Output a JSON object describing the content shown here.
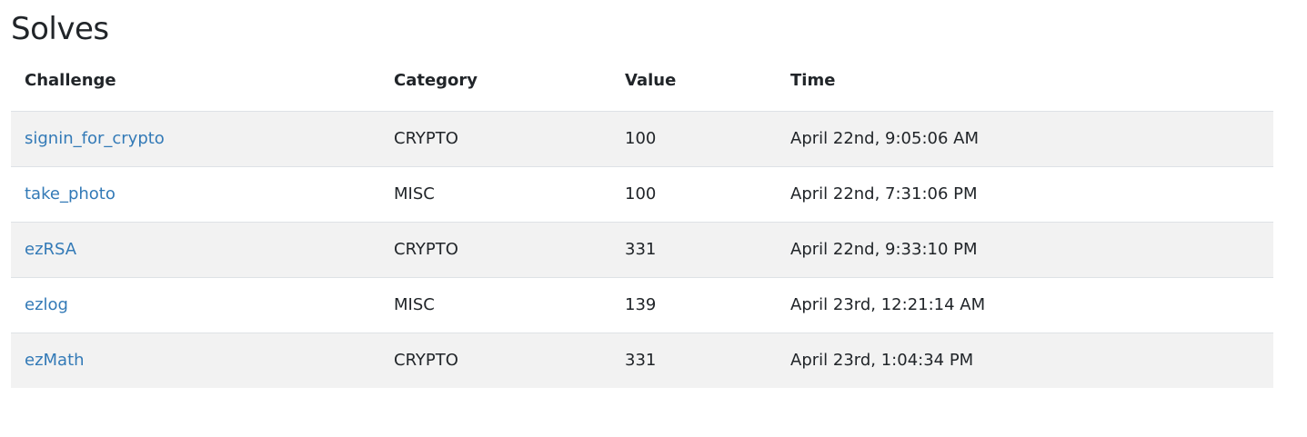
{
  "page": {
    "title": "Solves"
  },
  "table": {
    "headers": {
      "challenge": "Challenge",
      "category": "Category",
      "value": "Value",
      "time": "Time"
    },
    "rows": [
      {
        "challenge": "signin_for_crypto",
        "category": "CRYPTO",
        "value": "100",
        "time": "April 22nd, 9:05:06 AM"
      },
      {
        "challenge": "take_photo",
        "category": "MISC",
        "value": "100",
        "time": "April 22nd, 7:31:06 PM"
      },
      {
        "challenge": "ezRSA",
        "category": "CRYPTO",
        "value": "331",
        "time": "April 22nd, 9:33:10 PM"
      },
      {
        "challenge": "ezlog",
        "category": "MISC",
        "value": "139",
        "time": "April 23rd, 12:21:14 AM"
      },
      {
        "challenge": "ezMath",
        "category": "CRYPTO",
        "value": "331",
        "time": "April 23rd, 1:04:34 PM"
      }
    ]
  },
  "colors": {
    "link": "#337ab7",
    "text": "#212529",
    "stripe": "#f2f2f2",
    "border": "#dee2e6"
  }
}
